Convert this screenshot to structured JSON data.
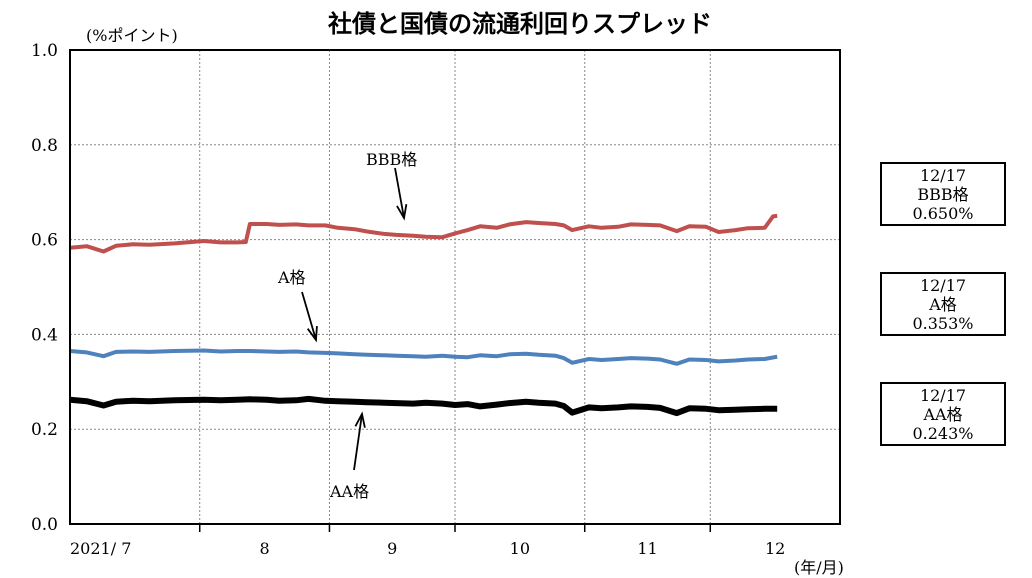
{
  "chart_data": {
    "type": "line",
    "title": "社債と国債の流通利回りスプレッド",
    "ylabel": "(%ポイント)",
    "xlabel": "(年/月)",
    "ylim": [
      0.0,
      1.0
    ],
    "yticks": [
      "0.0",
      "0.2",
      "0.4",
      "0.6",
      "0.8",
      "1.0"
    ],
    "xlim": [
      "2021-07-01",
      "2021-12-31"
    ],
    "x_tick_labels": [
      "2021/ 7",
      "8",
      "9",
      "10",
      "11",
      "12"
    ],
    "grid": true,
    "series": [
      {
        "name": "BBB格",
        "color": "#c0504d",
        "points": [
          [
            "2021-07-01",
            0.583
          ],
          [
            "2021-07-05",
            0.586
          ],
          [
            "2021-07-09",
            0.575
          ],
          [
            "2021-07-12",
            0.587
          ],
          [
            "2021-07-16",
            0.59
          ],
          [
            "2021-07-20",
            0.589
          ],
          [
            "2021-07-26",
            0.592
          ],
          [
            "2021-08-02",
            0.597
          ],
          [
            "2021-08-06",
            0.594
          ],
          [
            "2021-08-10",
            0.594
          ],
          [
            "2021-08-12",
            0.595
          ],
          [
            "2021-08-13",
            0.633
          ],
          [
            "2021-08-17",
            0.633
          ],
          [
            "2021-08-20",
            0.631
          ],
          [
            "2021-08-24",
            0.632
          ],
          [
            "2021-08-27",
            0.63
          ],
          [
            "2021-08-31",
            0.63
          ],
          [
            "2021-09-03",
            0.625
          ],
          [
            "2021-09-07",
            0.622
          ],
          [
            "2021-09-10",
            0.617
          ],
          [
            "2021-09-14",
            0.612
          ],
          [
            "2021-09-17",
            0.61
          ],
          [
            "2021-09-21",
            0.608
          ],
          [
            "2021-09-24",
            0.606
          ],
          [
            "2021-09-28",
            0.605
          ],
          [
            "2021-10-01",
            0.613
          ],
          [
            "2021-10-04",
            0.62
          ],
          [
            "2021-10-07",
            0.628
          ],
          [
            "2021-10-11",
            0.625
          ],
          [
            "2021-10-14",
            0.632
          ],
          [
            "2021-10-18",
            0.637
          ],
          [
            "2021-10-21",
            0.635
          ],
          [
            "2021-10-25",
            0.633
          ],
          [
            "2021-10-27",
            0.63
          ],
          [
            "2021-10-29",
            0.62
          ],
          [
            "2021-11-02",
            0.628
          ],
          [
            "2021-11-05",
            0.625
          ],
          [
            "2021-11-09",
            0.627
          ],
          [
            "2021-11-12",
            0.632
          ],
          [
            "2021-11-16",
            0.631
          ],
          [
            "2021-11-19",
            0.63
          ],
          [
            "2021-11-23",
            0.618
          ],
          [
            "2021-11-26",
            0.628
          ],
          [
            "2021-11-30",
            0.627
          ],
          [
            "2021-12-03",
            0.616
          ],
          [
            "2021-12-07",
            0.62
          ],
          [
            "2021-12-10",
            0.624
          ],
          [
            "2021-12-14",
            0.625
          ],
          [
            "2021-12-16",
            0.649
          ],
          [
            "2021-12-17",
            0.65
          ]
        ]
      },
      {
        "name": "A格",
        "color": "#4f81bd",
        "points": [
          [
            "2021-07-01",
            0.365
          ],
          [
            "2021-07-05",
            0.362
          ],
          [
            "2021-07-09",
            0.354
          ],
          [
            "2021-07-12",
            0.363
          ],
          [
            "2021-07-16",
            0.364
          ],
          [
            "2021-07-20",
            0.363
          ],
          [
            "2021-07-26",
            0.365
          ],
          [
            "2021-08-02",
            0.366
          ],
          [
            "2021-08-06",
            0.364
          ],
          [
            "2021-08-10",
            0.365
          ],
          [
            "2021-08-13",
            0.365
          ],
          [
            "2021-08-17",
            0.364
          ],
          [
            "2021-08-20",
            0.363
          ],
          [
            "2021-08-24",
            0.364
          ],
          [
            "2021-08-27",
            0.362
          ],
          [
            "2021-08-31",
            0.361
          ],
          [
            "2021-09-03",
            0.36
          ],
          [
            "2021-09-07",
            0.358
          ],
          [
            "2021-09-10",
            0.357
          ],
          [
            "2021-09-14",
            0.356
          ],
          [
            "2021-09-17",
            0.355
          ],
          [
            "2021-09-21",
            0.354
          ],
          [
            "2021-09-24",
            0.353
          ],
          [
            "2021-09-28",
            0.355
          ],
          [
            "2021-10-01",
            0.353
          ],
          [
            "2021-10-04",
            0.352
          ],
          [
            "2021-10-07",
            0.356
          ],
          [
            "2021-10-11",
            0.354
          ],
          [
            "2021-10-14",
            0.358
          ],
          [
            "2021-10-18",
            0.359
          ],
          [
            "2021-10-21",
            0.357
          ],
          [
            "2021-10-25",
            0.355
          ],
          [
            "2021-10-27",
            0.35
          ],
          [
            "2021-10-29",
            0.34
          ],
          [
            "2021-11-02",
            0.348
          ],
          [
            "2021-11-05",
            0.346
          ],
          [
            "2021-11-09",
            0.348
          ],
          [
            "2021-11-12",
            0.35
          ],
          [
            "2021-11-16",
            0.349
          ],
          [
            "2021-11-19",
            0.347
          ],
          [
            "2021-11-23",
            0.338
          ],
          [
            "2021-11-26",
            0.347
          ],
          [
            "2021-11-30",
            0.346
          ],
          [
            "2021-12-03",
            0.343
          ],
          [
            "2021-12-07",
            0.345
          ],
          [
            "2021-12-10",
            0.347
          ],
          [
            "2021-12-14",
            0.348
          ],
          [
            "2021-12-17",
            0.353
          ]
        ]
      },
      {
        "name": "AA格",
        "color": "#000000",
        "points": [
          [
            "2021-07-01",
            0.262
          ],
          [
            "2021-07-05",
            0.259
          ],
          [
            "2021-07-09",
            0.25
          ],
          [
            "2021-07-12",
            0.258
          ],
          [
            "2021-07-16",
            0.26
          ],
          [
            "2021-07-20",
            0.259
          ],
          [
            "2021-07-26",
            0.261
          ],
          [
            "2021-08-02",
            0.262
          ],
          [
            "2021-08-06",
            0.261
          ],
          [
            "2021-08-10",
            0.262
          ],
          [
            "2021-08-13",
            0.263
          ],
          [
            "2021-08-17",
            0.262
          ],
          [
            "2021-08-20",
            0.26
          ],
          [
            "2021-08-24",
            0.261
          ],
          [
            "2021-08-27",
            0.264
          ],
          [
            "2021-08-31",
            0.26
          ],
          [
            "2021-09-03",
            0.259
          ],
          [
            "2021-09-07",
            0.258
          ],
          [
            "2021-09-10",
            0.257
          ],
          [
            "2021-09-14",
            0.256
          ],
          [
            "2021-09-17",
            0.255
          ],
          [
            "2021-09-21",
            0.254
          ],
          [
            "2021-09-24",
            0.256
          ],
          [
            "2021-09-28",
            0.254
          ],
          [
            "2021-10-01",
            0.251
          ],
          [
            "2021-10-04",
            0.253
          ],
          [
            "2021-10-07",
            0.248
          ],
          [
            "2021-10-11",
            0.252
          ],
          [
            "2021-10-14",
            0.255
          ],
          [
            "2021-10-18",
            0.258
          ],
          [
            "2021-10-21",
            0.256
          ],
          [
            "2021-10-25",
            0.254
          ],
          [
            "2021-10-27",
            0.249
          ],
          [
            "2021-10-29",
            0.235
          ],
          [
            "2021-11-02",
            0.246
          ],
          [
            "2021-11-05",
            0.244
          ],
          [
            "2021-11-09",
            0.246
          ],
          [
            "2021-11-12",
            0.248
          ],
          [
            "2021-11-16",
            0.247
          ],
          [
            "2021-11-19",
            0.245
          ],
          [
            "2021-11-23",
            0.234
          ],
          [
            "2021-11-26",
            0.244
          ],
          [
            "2021-11-30",
            0.243
          ],
          [
            "2021-12-03",
            0.24
          ],
          [
            "2021-12-07",
            0.241
          ],
          [
            "2021-12-10",
            0.242
          ],
          [
            "2021-12-14",
            0.243
          ],
          [
            "2021-12-17",
            0.243
          ]
        ]
      }
    ],
    "annotations": [
      {
        "text": "BBB格",
        "series": "BBB格"
      },
      {
        "text": "A格",
        "series": "A格"
      },
      {
        "text": "AA格",
        "series": "AA格"
      }
    ],
    "value_boxes": [
      {
        "date": "12/17",
        "label": "BBB格",
        "value": "0.650%"
      },
      {
        "date": "12/17",
        "label": "A格",
        "value": "0.353%"
      },
      {
        "date": "12/17",
        "label": "AA格",
        "value": "0.243%"
      }
    ]
  }
}
